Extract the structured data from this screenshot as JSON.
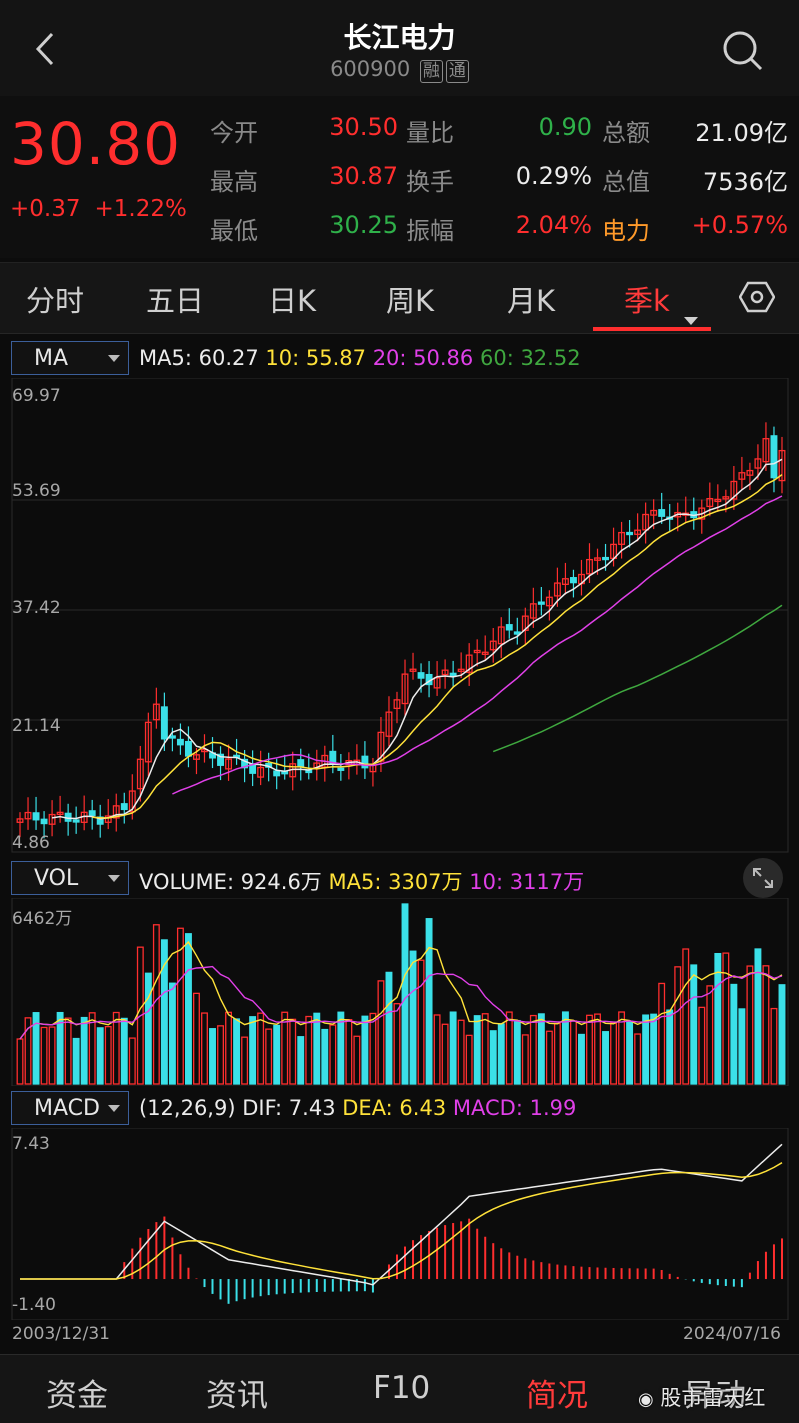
{
  "header": {
    "title": "长江电力",
    "code": "600900",
    "tags": [
      "融",
      "通"
    ]
  },
  "quote": {
    "price": "30.80",
    "change": "+0.37",
    "change_pct": "+1.22%",
    "stats": [
      {
        "label": "今开",
        "value": "30.50",
        "color": "red"
      },
      {
        "label": "量比",
        "value": "0.90",
        "color": "green"
      },
      {
        "label": "总额",
        "value": "21.09亿",
        "color": "white"
      },
      {
        "label": "最高",
        "value": "30.87",
        "color": "red"
      },
      {
        "label": "换手",
        "value": "0.29%",
        "color": "white"
      },
      {
        "label": "总值",
        "value": "7536亿",
        "color": "white"
      },
      {
        "label": "最低",
        "value": "30.25",
        "color": "green"
      },
      {
        "label": "振幅",
        "value": "2.04%",
        "color": "red"
      },
      {
        "label": "电力",
        "value": "+0.57%",
        "color": "red"
      }
    ]
  },
  "tabs": {
    "items": [
      "分时",
      "五日",
      "日K",
      "周K",
      "月K",
      "季k"
    ],
    "active": "季k",
    "settings_icon": "hexagon-gear-icon"
  },
  "ma_panel": {
    "selector": "MA",
    "legend": [
      {
        "text": "MA5: 60.27",
        "color": "#ececec"
      },
      {
        "text": "10: 55.87",
        "color": "#ffe23a"
      },
      {
        "text": "20: 50.86",
        "color": "#e040e8"
      },
      {
        "text": "60: 32.52",
        "color": "#3fa83f"
      }
    ],
    "y_labels": [
      "69.97",
      "53.69",
      "37.42",
      "21.14",
      "4.86"
    ]
  },
  "vol_panel": {
    "selector": "VOL",
    "legend": [
      {
        "text": "VOLUME: 924.6万",
        "color": "#ececec"
      },
      {
        "text": "MA5: 3307万",
        "color": "#ffe23a"
      },
      {
        "text": "10: 3117万",
        "color": "#e040e8"
      }
    ],
    "max_label": "6462万",
    "expand_icon": "expand-arrows-icon"
  },
  "macd_panel": {
    "selector": "MACD",
    "legend": [
      {
        "text": "(12,26,9)",
        "color": "#ececec"
      },
      {
        "text": "DIF: 7.43",
        "color": "#ececec"
      },
      {
        "text": "DEA: 6.43",
        "color": "#ffe23a"
      },
      {
        "text": "MACD: 1.99",
        "color": "#e040e8"
      }
    ],
    "y_labels": [
      "7.43",
      "-1.40"
    ]
  },
  "date_range": {
    "start": "2003/12/31",
    "end": "2024/07/16"
  },
  "bottom_nav": {
    "items": [
      "资金",
      "资讯",
      "F10",
      "简况",
      "异动"
    ],
    "active": "简况"
  },
  "watermark": "股市雷天红",
  "colors": {
    "up": "#ff2e2e",
    "down": "#3be0e8",
    "ma5": "#ececec",
    "ma10": "#ffe23a",
    "ma20": "#e040e8",
    "ma60": "#3fa83f"
  }
}
